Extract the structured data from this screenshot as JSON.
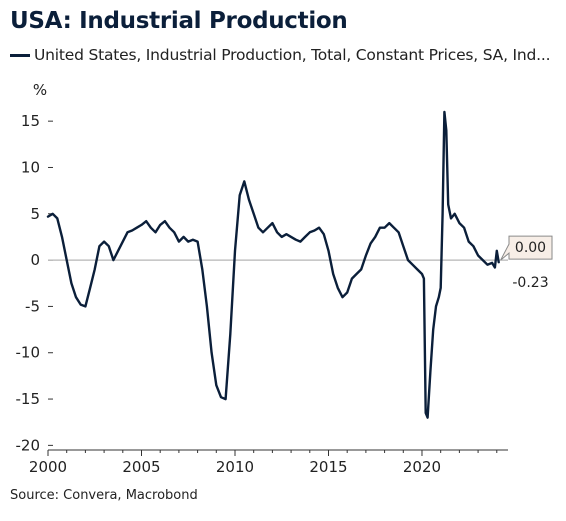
{
  "chart_data": {
    "type": "line",
    "title": "USA: Industrial Production",
    "ylabel": "%",
    "xlabel": "",
    "source": "Source: Convera, Macrobond",
    "xlim": [
      2000,
      2024.6
    ],
    "ylim": [
      -20.5,
      17.5
    ],
    "y_ticks": [
      15,
      10,
      5,
      0,
      -5,
      -10,
      -15,
      -20
    ],
    "x_ticks": [
      2000,
      2005,
      2010,
      2015,
      2020
    ],
    "grid": false,
    "legend_position": "top-left",
    "zero_line": true,
    "series": [
      {
        "name": "United States, Industrial Production, Total, Constant Prices, SA, Ind...",
        "color": "#0b1f3a",
        "x": [
          2000.0,
          2000.25,
          2000.5,
          2000.75,
          2001.0,
          2001.25,
          2001.5,
          2001.75,
          2002.0,
          2002.25,
          2002.5,
          2002.75,
          2003.0,
          2003.25,
          2003.5,
          2003.75,
          2004.0,
          2004.25,
          2004.5,
          2004.75,
          2005.0,
          2005.25,
          2005.5,
          2005.75,
          2006.0,
          2006.25,
          2006.5,
          2006.75,
          2007.0,
          2007.25,
          2007.5,
          2007.75,
          2008.0,
          2008.25,
          2008.5,
          2008.75,
          2009.0,
          2009.25,
          2009.5,
          2009.75,
          2010.0,
          2010.25,
          2010.5,
          2010.75,
          2011.0,
          2011.25,
          2011.5,
          2011.75,
          2012.0,
          2012.25,
          2012.5,
          2012.75,
          2013.0,
          2013.25,
          2013.5,
          2013.75,
          2014.0,
          2014.25,
          2014.5,
          2014.75,
          2015.0,
          2015.25,
          2015.5,
          2015.75,
          2016.0,
          2016.25,
          2016.5,
          2016.75,
          2017.0,
          2017.25,
          2017.5,
          2017.75,
          2018.0,
          2018.25,
          2018.5,
          2018.75,
          2019.0,
          2019.25,
          2019.5,
          2019.75,
          2020.0,
          2020.1,
          2020.2,
          2020.3,
          2020.45,
          2020.6,
          2020.75,
          2020.9,
          2021.0,
          2021.1,
          2021.2,
          2021.3,
          2021.4,
          2021.55,
          2021.75,
          2022.0,
          2022.25,
          2022.5,
          2022.75,
          2023.0,
          2023.25,
          2023.5,
          2023.75,
          2023.9,
          2024.0,
          2024.1
        ],
        "values": [
          4.7,
          5.0,
          4.5,
          2.5,
          0.0,
          -2.5,
          -4.0,
          -4.8,
          -5.0,
          -3.0,
          -1.0,
          1.5,
          2.0,
          1.5,
          0.0,
          1.0,
          2.0,
          3.0,
          3.2,
          3.5,
          3.8,
          4.2,
          3.5,
          3.0,
          3.8,
          4.2,
          3.5,
          3.0,
          2.0,
          2.5,
          2.0,
          2.2,
          2.0,
          -1.0,
          -5.0,
          -10.0,
          -13.5,
          -14.8,
          -15.0,
          -8.0,
          1.0,
          7.0,
          8.5,
          6.5,
          5.0,
          3.5,
          3.0,
          3.5,
          4.0,
          3.0,
          2.5,
          2.8,
          2.5,
          2.2,
          2.0,
          2.5,
          3.0,
          3.2,
          3.5,
          2.8,
          1.0,
          -1.5,
          -3.0,
          -4.0,
          -3.5,
          -2.0,
          -1.5,
          -1.0,
          0.5,
          1.8,
          2.5,
          3.5,
          3.5,
          4.0,
          3.5,
          3.0,
          1.5,
          0.0,
          -0.5,
          -1.0,
          -1.5,
          -2.0,
          -16.5,
          -17.0,
          -12.0,
          -7.5,
          -5.0,
          -4.0,
          -3.0,
          5.0,
          16.0,
          14.0,
          6.0,
          4.5,
          5.0,
          4.0,
          3.5,
          2.0,
          1.5,
          0.5,
          0.0,
          -0.5,
          -0.3,
          -0.8,
          1.0,
          -0.23
        ]
      }
    ],
    "annotations": [
      {
        "x": 2024.1,
        "y": 0.0,
        "label": "0.00"
      },
      {
        "x": 2024.1,
        "y": -0.23,
        "label": "-0.23"
      }
    ]
  }
}
